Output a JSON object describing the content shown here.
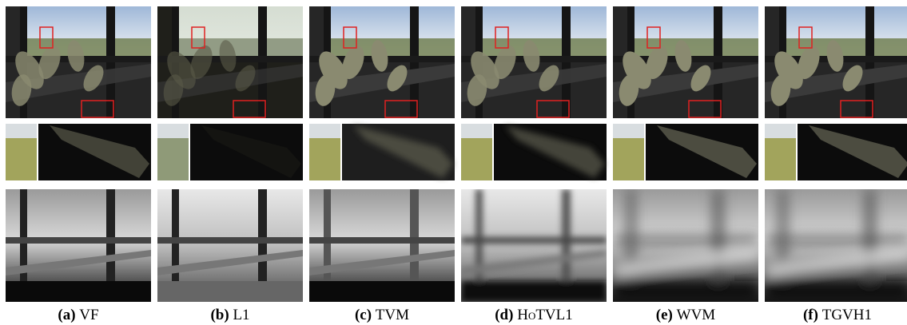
{
  "panels": [
    {
      "label": "(a)",
      "name": "VF"
    },
    {
      "label": "(b)",
      "name": "L1"
    },
    {
      "label": "(c)",
      "name": "TVM"
    },
    {
      "label": "(d)",
      "name": "HoTVL1"
    },
    {
      "label": "(e)",
      "name": "WVM"
    },
    {
      "label": "(f)",
      "name": "TGVH1"
    }
  ]
}
